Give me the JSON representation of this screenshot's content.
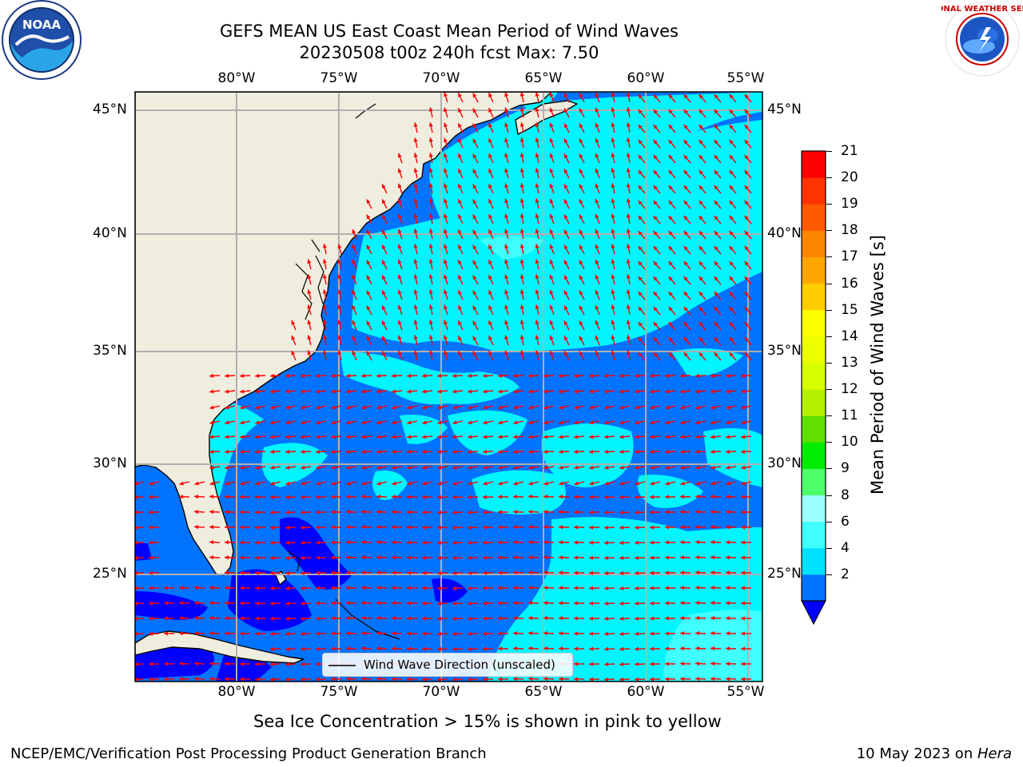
{
  "header": {
    "title_line1": "GEFS MEAN US East Coast Mean Period of Wind Waves",
    "title_line2": "20230508 t00z 240h fcst   Max: 7.50"
  },
  "logos": {
    "left": {
      "icon": "noaa-logo",
      "text": "NOAA"
    },
    "right": {
      "icon": "nws-logo",
      "text": "NATIONAL WEATHER SERVICE"
    }
  },
  "map": {
    "lon_labels": [
      "80°W",
      "75°W",
      "70°W",
      "65°W",
      "60°W",
      "55°W"
    ],
    "lat_labels": [
      "45°N",
      "40°N",
      "35°N",
      "30°N",
      "25°N"
    ],
    "legend_label": "Wind Wave Direction (unscaled)",
    "land_color": "#efedde",
    "coast_color": "#000000",
    "grid_color": "#b0b0b0",
    "arrow_color": "#ff0000"
  },
  "colorbar": {
    "label": "Mean Period of Wind Waves [s]",
    "ticks": [
      "21",
      "20",
      "19",
      "18",
      "17",
      "16",
      "15",
      "14",
      "13",
      "12",
      "11",
      "10",
      "9",
      "8",
      "6",
      "4",
      "2"
    ],
    "colors_bottom_to_top": [
      "#0073ff",
      "#00e1ff",
      "#40ffff",
      "#99ffff",
      "#4cff6b",
      "#00ec00",
      "#5fe000",
      "#b4f000",
      "#d6ff00",
      "#ebff00",
      "#ffff00",
      "#ffcd00",
      "#ffa600",
      "#ff8600",
      "#ff5a00",
      "#ff3300",
      "#ff0000"
    ],
    "underflow_color": "#0000ff"
  },
  "footer": {
    "note": "Sea Ice Concentration > 15% is shown in pink to yellow",
    "left": "NCEP/EMC/Verification Post Processing Product Generation Branch",
    "right_date": "10 May 2023 on ",
    "right_machine": "Hera"
  }
}
